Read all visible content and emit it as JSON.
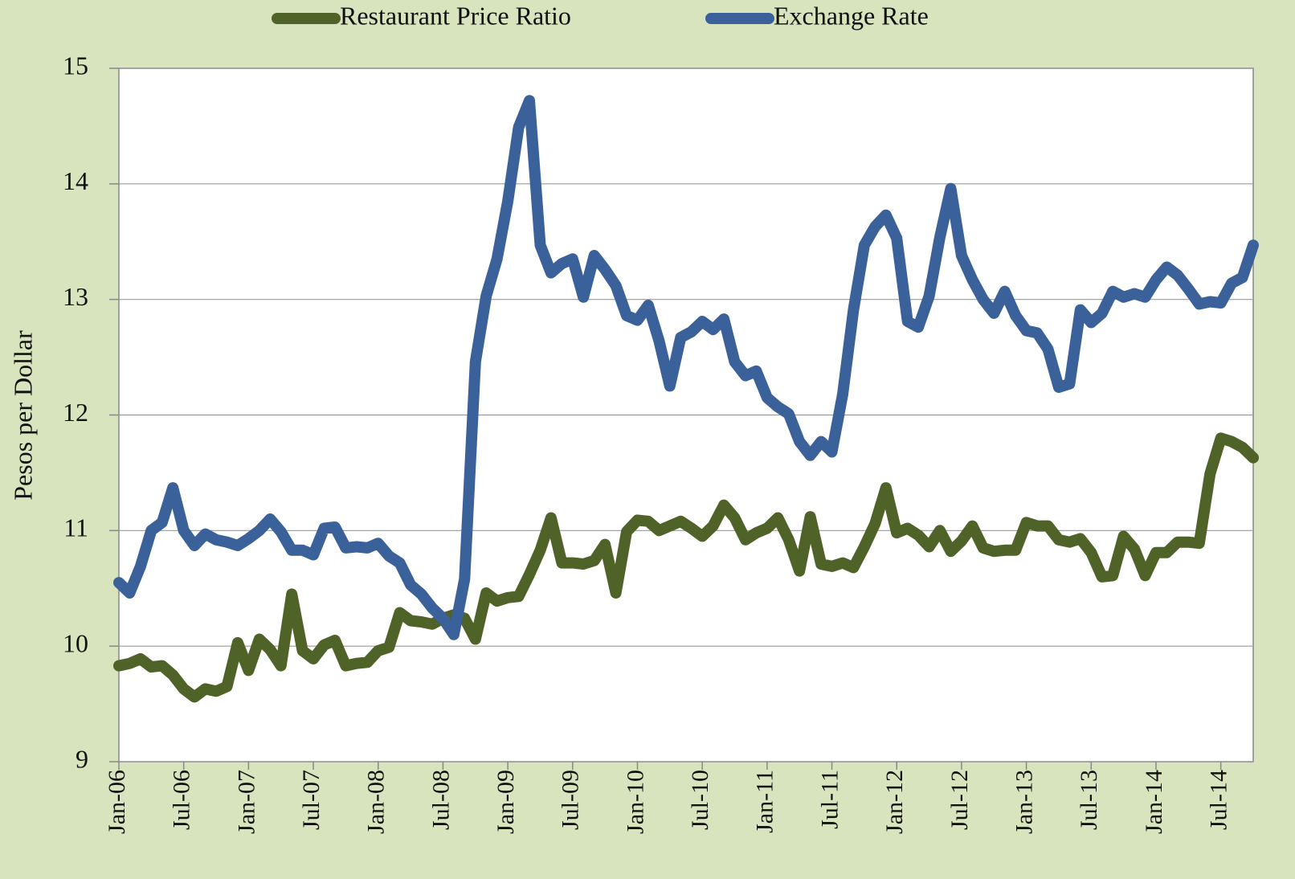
{
  "chart_data": {
    "type": "line",
    "y_label": "Pesos per Dollar",
    "categories": [
      "Jan-06",
      null,
      null,
      null,
      null,
      null,
      "Jul-06",
      null,
      null,
      null,
      null,
      null,
      "Jan-07",
      null,
      null,
      null,
      null,
      null,
      "Jul-07",
      null,
      null,
      null,
      null,
      null,
      "Jan-08",
      null,
      null,
      null,
      null,
      null,
      "Jul-08",
      null,
      null,
      null,
      null,
      null,
      "Jan-09",
      null,
      null,
      null,
      null,
      null,
      "Jul-09",
      null,
      null,
      null,
      null,
      null,
      "Jan-10",
      null,
      null,
      null,
      null,
      null,
      "Jul-10",
      null,
      null,
      null,
      null,
      null,
      "Jan-11",
      null,
      null,
      null,
      null,
      null,
      "Jul-11",
      null,
      null,
      null,
      null,
      null,
      "Jan-12",
      null,
      null,
      null,
      null,
      null,
      "Jul-12",
      null,
      null,
      null,
      null,
      null,
      "Jan-13",
      null,
      null,
      null,
      null,
      null,
      "Jul-13",
      null,
      null,
      null,
      null,
      null,
      "Jan-14",
      null,
      null,
      null,
      null,
      null,
      "Jul-14",
      null,
      null,
      null
    ],
    "series": [
      {
        "name": "Restaurant Price Ratio",
        "color": "#4f6228",
        "values": [
          9.83,
          9.85,
          9.89,
          9.82,
          9.83,
          9.75,
          9.63,
          9.56,
          9.63,
          9.61,
          9.65,
          10.03,
          9.79,
          10.06,
          9.97,
          9.83,
          10.45,
          9.96,
          9.89,
          10.01,
          10.05,
          9.83,
          9.85,
          9.86,
          9.96,
          9.99,
          10.29,
          10.22,
          10.21,
          10.19,
          10.24,
          10.27,
          10.24,
          10.06,
          10.46,
          10.39,
          10.42,
          10.43,
          10.62,
          10.83,
          11.11,
          10.72,
          10.72,
          10.71,
          10.74,
          10.88,
          10.46,
          10.99,
          11.09,
          11.08,
          11.0,
          11.04,
          11.08,
          11.02,
          10.95,
          11.04,
          11.22,
          11.11,
          10.92,
          10.98,
          11.02,
          11.11,
          10.92,
          10.65,
          11.12,
          10.71,
          10.69,
          10.72,
          10.68,
          10.86,
          11.06,
          11.37,
          10.98,
          11.02,
          10.96,
          10.86,
          11.0,
          10.82,
          10.91,
          11.04,
          10.85,
          10.82,
          10.83,
          10.83,
          11.07,
          11.04,
          11.04,
          10.92,
          10.9,
          10.93,
          10.81,
          10.6,
          10.61,
          10.95,
          10.84,
          10.61,
          10.81,
          10.81,
          10.9,
          10.9,
          10.89,
          11.49,
          11.8,
          11.77,
          11.72,
          11.63
        ]
      },
      {
        "name": "Exchange Rate",
        "color": "#3a6199",
        "values": [
          10.55,
          10.46,
          10.69,
          11.0,
          11.07,
          11.37,
          11.0,
          10.87,
          10.97,
          10.92,
          10.9,
          10.87,
          10.93,
          11.0,
          11.1,
          10.99,
          10.83,
          10.83,
          10.79,
          11.02,
          11.03,
          10.85,
          10.86,
          10.85,
          10.89,
          10.78,
          10.72,
          10.53,
          10.45,
          10.33,
          10.24,
          10.1,
          10.58,
          12.46,
          13.03,
          13.35,
          13.85,
          14.49,
          14.72,
          13.47,
          13.23,
          13.31,
          13.35,
          13.02,
          13.38,
          13.26,
          13.12,
          12.86,
          12.82,
          12.95,
          12.64,
          12.25,
          12.67,
          12.72,
          12.81,
          12.74,
          12.83,
          12.46,
          12.34,
          12.38,
          12.15,
          12.07,
          12.01,
          11.77,
          11.65,
          11.77,
          11.68,
          12.18,
          12.91,
          13.47,
          13.63,
          13.73,
          13.53,
          12.81,
          12.76,
          13.03,
          13.54,
          13.96,
          13.38,
          13.17,
          13.0,
          12.88,
          13.07,
          12.86,
          12.73,
          12.71,
          12.57,
          12.24,
          12.27,
          12.91,
          12.8,
          12.88,
          13.07,
          13.02,
          13.05,
          13.02,
          13.17,
          13.28,
          13.21,
          13.09,
          12.96,
          12.98,
          12.97,
          13.14,
          13.19,
          13.47
        ]
      }
    ],
    "ylim": [
      9,
      15
    ],
    "yticks": [
      9,
      10,
      11,
      12,
      13,
      14,
      15
    ],
    "grid": true,
    "legend": "top"
  }
}
